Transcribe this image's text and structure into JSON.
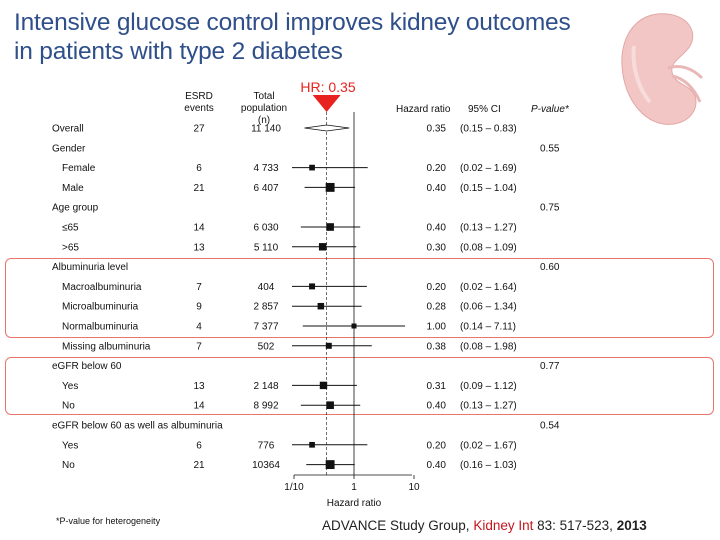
{
  "title": "Intensive glucose control improves kidney outcomes in patients with type 2 diabetes",
  "hr_callout": "HR: 0.35",
  "reference": {
    "authors": "ADVANCE Study Group, ",
    "journal": "Kidney Int",
    "details": " 83: 517-523, ",
    "year": "2013"
  },
  "footnote": "*P-value for heterogeneity",
  "columns": {
    "events": "ESRD events",
    "total": "Total population (n)",
    "hr": "Hazard ratio",
    "ci": "95% CI",
    "p": "P-value*"
  },
  "chart_data": {
    "type": "forest",
    "xlabel": "Hazard ratio",
    "xscale": "log",
    "xlim": [
      0.07,
      14
    ],
    "x_ticks": [
      0.1,
      1,
      10
    ],
    "x_tick_labels": [
      "1/10",
      "1",
      "10"
    ],
    "reference_line": 1,
    "rows": [
      {
        "label": "Overall",
        "kind": "estimate",
        "events": "27",
        "total": "11 140",
        "hr": 0.35,
        "lo": 0.15,
        "hi": 0.83,
        "hr_text": "0.35",
        "ci_text": "(0.15 – 0.83)",
        "p": "",
        "diamond": true
      },
      {
        "label": "Gender",
        "kind": "group",
        "p": "0.55"
      },
      {
        "label": "Female",
        "kind": "estimate",
        "events": "6",
        "total": "4 733",
        "hr": 0.2,
        "lo": 0.02,
        "hi": 1.69,
        "hr_text": "0.20",
        "ci_text": "(0.02 – 1.69)",
        "p": "",
        "weight": 6
      },
      {
        "label": "Male",
        "kind": "estimate",
        "events": "21",
        "total": "6 407",
        "hr": 0.4,
        "lo": 0.15,
        "hi": 1.04,
        "hr_text": "0.40",
        "ci_text": "(0.15 – 1.04)",
        "p": "",
        "weight": 21
      },
      {
        "label": "Age group",
        "kind": "group",
        "p": "0.75"
      },
      {
        "label": "≤65",
        "kind": "estimate",
        "events": "14",
        "total": "6 030",
        "hr": 0.4,
        "lo": 0.13,
        "hi": 1.27,
        "hr_text": "0.40",
        "ci_text": "(0.13 – 1.27)",
        "p": "",
        "weight": 14
      },
      {
        "label": ">65",
        "kind": "estimate",
        "events": "13",
        "total": "5 110",
        "hr": 0.3,
        "lo": 0.08,
        "hi": 1.09,
        "hr_text": "0.30",
        "ci_text": "(0.08 – 1.09)",
        "p": "",
        "weight": 13
      },
      {
        "label": "Albuminuria level",
        "kind": "group",
        "p": "0.60"
      },
      {
        "label": "Macroalbuminuria",
        "kind": "estimate",
        "events": "7",
        "total": "404",
        "hr": 0.2,
        "lo": 0.02,
        "hi": 1.64,
        "hr_text": "0.20",
        "ci_text": "(0.02 – 1.64)",
        "p": "",
        "weight": 7
      },
      {
        "label": "Microalbuminuria",
        "kind": "estimate",
        "events": "9",
        "total": "2 857",
        "hr": 0.28,
        "lo": 0.06,
        "hi": 1.34,
        "hr_text": "0.28",
        "ci_text": "(0.06 – 1.34)",
        "p": "",
        "weight": 9
      },
      {
        "label": "Normalbuminuria",
        "kind": "estimate",
        "events": "4",
        "total": "7 377",
        "hr": 1.0,
        "lo": 0.14,
        "hi": 7.11,
        "hr_text": "1.00",
        "ci_text": "(0.14 – 7.11)",
        "p": "",
        "weight": 4
      },
      {
        "label": "Missing albuminuria",
        "kind": "estimate",
        "events": "7",
        "total": "502",
        "hr": 0.38,
        "lo": 0.08,
        "hi": 1.98,
        "hr_text": "0.38",
        "ci_text": "(0.08 – 1.98)",
        "p": "",
        "weight": 7
      },
      {
        "label": "eGFR below 60",
        "kind": "group",
        "p": "0.77"
      },
      {
        "label": "Yes",
        "kind": "estimate",
        "events": "13",
        "total": "2 148",
        "hr": 0.31,
        "lo": 0.09,
        "hi": 1.12,
        "hr_text": "0.31",
        "ci_text": "(0.09 – 1.12)",
        "p": "",
        "weight": 13
      },
      {
        "label": "No",
        "kind": "estimate",
        "events": "14",
        "total": "8 992",
        "hr": 0.4,
        "lo": 0.13,
        "hi": 1.27,
        "hr_text": "0.40",
        "ci_text": "(0.13 – 1.27)",
        "p": "",
        "weight": 14
      },
      {
        "label": "eGFR below 60 as well as albuminuria",
        "kind": "group",
        "p": "0.54"
      },
      {
        "label": "Yes",
        "kind": "estimate",
        "events": "6",
        "total": "776",
        "hr": 0.2,
        "lo": 0.02,
        "hi": 1.67,
        "hr_text": "0.20",
        "ci_text": "(0.02 – 1.67)",
        "p": "",
        "weight": 6
      },
      {
        "label": "No",
        "kind": "estimate",
        "events": "21",
        "total": "10364",
        "hr": 0.4,
        "lo": 0.16,
        "hi": 1.03,
        "hr_text": "0.40",
        "ci_text": "(0.16 – 1.03)",
        "p": "",
        "weight": 21
      }
    ]
  },
  "colors": {
    "title": "#2f4f8a",
    "highlight": "#e8766c",
    "callout": "#e8231f",
    "ink": "#111111",
    "kidney": "#f2c6c4"
  }
}
